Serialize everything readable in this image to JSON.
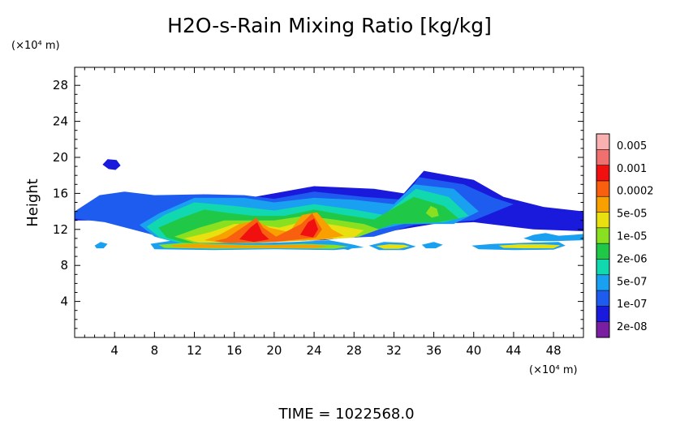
{
  "chart_data": {
    "type": "heatmap",
    "title": "H2O-s-Rain Mixing Ratio [kg/kg]",
    "ylabel": "Height",
    "y_unit": "(×10⁴ m)",
    "x_unit": "(×10⁴ m)",
    "footer": "TIME = 1022568.0",
    "xlim": [
      0,
      51
    ],
    "ylim": [
      0,
      30
    ],
    "x_ticks": [
      4,
      8,
      12,
      16,
      20,
      24,
      28,
      32,
      36,
      40,
      44,
      48
    ],
    "y_ticks": [
      4,
      8,
      12,
      16,
      20,
      24,
      28
    ],
    "x_tick_labels": [
      "4",
      "8",
      "12",
      "16",
      "20",
      "24",
      "28",
      "32",
      "36",
      "40",
      "44",
      "48"
    ],
    "y_tick_labels": [
      "4",
      "8",
      "12",
      "16",
      "20",
      "24",
      "28"
    ],
    "colorbar": {
      "colors": [
        "#7b1fa2",
        "#1a1adc",
        "#1e5cf0",
        "#1aa0f0",
        "#12d8b0",
        "#20c848",
        "#88e020",
        "#e8e010",
        "#f8a000",
        "#f86010",
        "#f01010",
        "#f07070",
        "#f8b0b0"
      ],
      "tick_labels": [
        "2e-08",
        "1e-07",
        "5e-07",
        "2e-06",
        "1e-05",
        "5e-05",
        "0.0002",
        "0.001",
        "0.005"
      ]
    },
    "regions": [
      {
        "level": 1,
        "polygon": [
          [
            0,
            13.5
          ],
          [
            3,
            13.6
          ],
          [
            8,
            14.5
          ],
          [
            13,
            15.3
          ],
          [
            18,
            15.6
          ],
          [
            24,
            16.8
          ],
          [
            30,
            16.5
          ],
          [
            33,
            16
          ],
          [
            35,
            18.5
          ],
          [
            40,
            17.5
          ],
          [
            43,
            15.6
          ],
          [
            47,
            14.5
          ],
          [
            51,
            14
          ],
          [
            51,
            11.8
          ],
          [
            46,
            12
          ],
          [
            40,
            12.8
          ],
          [
            36,
            12.6
          ],
          [
            30,
            11.5
          ],
          [
            25,
            10.8
          ],
          [
            18,
            10.6
          ],
          [
            10,
            10.6
          ],
          [
            7,
            11.8
          ],
          [
            4,
            13
          ],
          [
            0,
            13
          ]
        ]
      },
      {
        "level": 1,
        "polygon": [
          [
            2.8,
            19.2
          ],
          [
            3.3,
            19.8
          ],
          [
            4.2,
            19.7
          ],
          [
            4.6,
            19.1
          ],
          [
            4.1,
            18.6
          ],
          [
            3.4,
            18.7
          ]
        ]
      },
      {
        "level": 1,
        "polygon": [
          [
            43.5,
            14.6
          ],
          [
            44.4,
            15.2
          ],
          [
            45.4,
            14.9
          ],
          [
            45.5,
            14.2
          ],
          [
            44.4,
            13.9
          ]
        ]
      },
      {
        "level": 2,
        "polygon": [
          [
            0,
            14
          ],
          [
            2.5,
            15.8
          ],
          [
            5,
            16.2
          ],
          [
            8,
            15.8
          ],
          [
            13,
            15.9
          ],
          [
            17,
            15.8
          ],
          [
            20,
            15.4
          ],
          [
            24,
            16.2
          ],
          [
            29,
            15.6
          ],
          [
            33,
            15.3
          ],
          [
            34.5,
            17.8
          ],
          [
            39,
            17
          ],
          [
            42,
            15.5
          ],
          [
            44,
            14.8
          ],
          [
            40,
            13
          ],
          [
            34,
            12.5
          ],
          [
            30,
            11.2
          ],
          [
            26,
            11
          ],
          [
            18,
            10.5
          ],
          [
            10,
            10.6
          ],
          [
            7.5,
            11.5
          ],
          [
            3,
            12.8
          ],
          [
            0,
            13.2
          ]
        ]
      },
      {
        "level": 3,
        "polygon": [
          [
            8.5,
            13.8
          ],
          [
            12,
            15.5
          ],
          [
            17,
            15.5
          ],
          [
            20,
            15
          ],
          [
            24,
            15.5
          ],
          [
            28,
            15.3
          ],
          [
            32,
            14.8
          ],
          [
            34,
            17
          ],
          [
            38,
            16.5
          ],
          [
            40.5,
            14
          ],
          [
            38,
            12.6
          ],
          [
            33,
            12.6
          ],
          [
            29,
            11.6
          ],
          [
            25,
            11
          ],
          [
            18,
            10.5
          ],
          [
            10,
            10.6
          ],
          [
            8,
            11.2
          ],
          [
            6.5,
            12.5
          ]
        ]
      },
      {
        "level": 4,
        "polygon": [
          [
            9,
            13.6
          ],
          [
            12,
            15
          ],
          [
            16,
            14.6
          ],
          [
            20,
            14.1
          ],
          [
            24,
            14.8
          ],
          [
            28,
            14.2
          ],
          [
            31,
            13.6
          ],
          [
            34.2,
            16.5
          ],
          [
            37.5,
            15.6
          ],
          [
            39.5,
            13.5
          ],
          [
            37,
            12.8
          ],
          [
            32,
            12.6
          ],
          [
            28.5,
            11.4
          ],
          [
            24,
            11
          ],
          [
            18,
            10.5
          ],
          [
            10.5,
            10.5
          ],
          [
            8.5,
            11.1
          ],
          [
            7.2,
            12.3
          ]
        ]
      },
      {
        "level": 5,
        "polygon": [
          [
            10.5,
            13.2
          ],
          [
            13,
            14.2
          ],
          [
            15.5,
            13.8
          ],
          [
            18,
            13.5
          ],
          [
            21,
            13.5
          ],
          [
            24,
            14.2
          ],
          [
            27,
            13.6
          ],
          [
            30,
            13.1
          ],
          [
            34,
            15.6
          ],
          [
            37,
            14.6
          ],
          [
            38.5,
            13.2
          ],
          [
            36.5,
            12.8
          ],
          [
            32,
            12.6
          ],
          [
            28.5,
            11.3
          ],
          [
            24,
            11
          ],
          [
            18,
            10.5
          ],
          [
            11,
            10.5
          ],
          [
            9.2,
            11.1
          ],
          [
            8.4,
            12.2
          ]
        ]
      },
      {
        "level": 6,
        "polygon": [
          [
            12.5,
            12.2
          ],
          [
            15,
            13
          ],
          [
            17.5,
            13
          ],
          [
            20,
            13
          ],
          [
            23,
            13.5
          ],
          [
            26,
            13.1
          ],
          [
            29,
            12.6
          ],
          [
            30.5,
            12
          ],
          [
            28.5,
            11.2
          ],
          [
            24,
            10.8
          ],
          [
            18,
            10.5
          ],
          [
            12,
            10.5
          ],
          [
            10,
            11.2
          ]
        ]
      },
      {
        "level": 7,
        "polygon": [
          [
            13.6,
            11.7
          ],
          [
            16,
            12.6
          ],
          [
            18,
            12.6
          ],
          [
            20.5,
            12.2
          ],
          [
            23,
            12.9
          ],
          [
            26,
            12.5
          ],
          [
            29,
            11.9
          ],
          [
            28,
            11.1
          ],
          [
            24,
            10.8
          ],
          [
            18,
            10.5
          ],
          [
            12.5,
            10.5
          ],
          [
            11,
            11
          ]
        ]
      },
      {
        "level": 8,
        "polygon": [
          [
            14.5,
            11.4
          ],
          [
            16.5,
            12.6
          ],
          [
            18.2,
            13
          ],
          [
            19.5,
            12.2
          ],
          [
            21.5,
            11.7
          ],
          [
            22.8,
            13.6
          ],
          [
            24.3,
            13.9
          ],
          [
            25.8,
            12
          ],
          [
            27,
            11.3
          ],
          [
            25,
            10.9
          ],
          [
            20,
            10.6
          ],
          [
            15,
            10.5
          ],
          [
            13,
            10.8
          ]
        ]
      },
      {
        "level": 9,
        "polygon": [
          [
            15.2,
            11
          ],
          [
            17.2,
            12.5
          ],
          [
            18.2,
            13.3
          ],
          [
            18.9,
            12.2
          ],
          [
            20.2,
            11.2
          ],
          [
            22.7,
            12.6
          ],
          [
            23.8,
            13.8
          ],
          [
            24.8,
            12
          ],
          [
            24.2,
            11.1
          ],
          [
            20,
            10.6
          ],
          [
            15.5,
            10.5
          ],
          [
            14,
            10.7
          ]
        ]
      },
      {
        "level": 10,
        "polygon": [
          [
            16.5,
            10.9
          ],
          [
            17.6,
            12.2
          ],
          [
            18.3,
            12.8
          ],
          [
            18.8,
            11.6
          ],
          [
            19.5,
            10.9
          ],
          [
            18,
            10.6
          ]
        ]
      },
      {
        "level": 10,
        "polygon": [
          [
            22.6,
            11.4
          ],
          [
            23.4,
            12.8
          ],
          [
            24,
            13.2
          ],
          [
            24.4,
            12
          ],
          [
            23.9,
            11.1
          ]
        ]
      },
      {
        "level": 3,
        "polygon": [
          [
            7.6,
            10.4
          ],
          [
            10,
            10.8
          ],
          [
            13,
            10.7
          ],
          [
            16,
            10.6
          ],
          [
            19,
            10.5
          ],
          [
            22,
            10.6
          ],
          [
            25.5,
            10.8
          ],
          [
            28,
            10.3
          ],
          [
            29,
            10
          ],
          [
            26,
            9.7
          ],
          [
            20,
            9.8
          ],
          [
            14,
            9.7
          ],
          [
            8,
            9.8
          ]
        ]
      },
      {
        "level": 6,
        "polygon": [
          [
            8.4,
            10.3
          ],
          [
            11,
            10.5
          ],
          [
            14,
            10.4
          ],
          [
            17,
            10.3
          ],
          [
            20,
            10.3
          ],
          [
            23,
            10.4
          ],
          [
            26,
            10.3
          ],
          [
            27.5,
            10.1
          ],
          [
            26,
            9.85
          ],
          [
            20,
            9.9
          ],
          [
            14,
            9.85
          ],
          [
            9,
            9.95
          ]
        ]
      },
      {
        "level": 8,
        "polygon": [
          [
            9.6,
            10.25
          ],
          [
            12,
            10.4
          ],
          [
            15,
            10.3
          ],
          [
            18,
            10.2
          ],
          [
            21,
            10.3
          ],
          [
            24,
            10.3
          ],
          [
            25.5,
            10.1
          ],
          [
            24,
            9.95
          ],
          [
            18,
            9.95
          ],
          [
            12,
            9.95
          ],
          [
            10,
            10.05
          ]
        ]
      },
      {
        "level": 3,
        "polygon": [
          [
            29.5,
            10.2
          ],
          [
            31,
            10.6
          ],
          [
            33,
            10.5
          ],
          [
            34.2,
            10.1
          ],
          [
            33,
            9.7
          ],
          [
            30.5,
            9.7
          ]
        ]
      },
      {
        "level": 7,
        "polygon": [
          [
            30.2,
            10.15
          ],
          [
            31.5,
            10.35
          ],
          [
            33,
            10.3
          ],
          [
            33.6,
            10.1
          ],
          [
            32.5,
            9.85
          ],
          [
            31,
            9.85
          ]
        ]
      },
      {
        "level": 3,
        "polygon": [
          [
            39.8,
            10.2
          ],
          [
            42,
            10.4
          ],
          [
            45,
            10.5
          ],
          [
            48.5,
            10.6
          ],
          [
            49.2,
            10.2
          ],
          [
            48,
            9.75
          ],
          [
            44,
            9.7
          ],
          [
            40.5,
            9.8
          ]
        ]
      },
      {
        "level": 7,
        "polygon": [
          [
            42.5,
            10.2
          ],
          [
            44.5,
            10.35
          ],
          [
            47,
            10.35
          ],
          [
            48.7,
            10.25
          ],
          [
            48,
            9.9
          ],
          [
            45,
            9.9
          ],
          [
            43,
            9.95
          ]
        ]
      },
      {
        "level": 3,
        "polygon": [
          [
            34.8,
            10.3
          ],
          [
            36,
            10.6
          ],
          [
            36.9,
            10.3
          ],
          [
            36.2,
            9.9
          ],
          [
            35.2,
            9.9
          ]
        ]
      },
      {
        "level": 3,
        "polygon": [
          [
            2,
            10.2
          ],
          [
            2.6,
            10.6
          ],
          [
            3.3,
            10.4
          ],
          [
            2.9,
            9.9
          ],
          [
            2.2,
            9.9
          ]
        ]
      },
      {
        "level": 3,
        "polygon": [
          [
            26.3,
            10
          ],
          [
            27.4,
            10.4
          ],
          [
            28.2,
            10.1
          ],
          [
            27.4,
            9.7
          ]
        ]
      },
      {
        "level": 3,
        "polygon": [
          [
            45,
            11
          ],
          [
            46,
            11.4
          ],
          [
            47.2,
            11.6
          ],
          [
            48.5,
            11.3
          ],
          [
            50,
            11.4
          ],
          [
            51,
            11.5
          ],
          [
            51,
            10.8
          ],
          [
            48,
            10.7
          ],
          [
            46,
            10.7
          ]
        ]
      },
      {
        "level": 4,
        "polygon": [
          [
            34.5,
            14.5
          ],
          [
            35.5,
            15.8
          ],
          [
            36.5,
            15.5
          ],
          [
            37.5,
            14
          ],
          [
            36.8,
            13.4
          ],
          [
            35.2,
            13.6
          ]
        ]
      },
      {
        "level": 6,
        "polygon": [
          [
            35.2,
            13.8
          ],
          [
            35.7,
            14.6
          ],
          [
            36.3,
            14.3
          ],
          [
            36.5,
            13.5
          ],
          [
            35.8,
            13.3
          ]
        ]
      }
    ]
  }
}
